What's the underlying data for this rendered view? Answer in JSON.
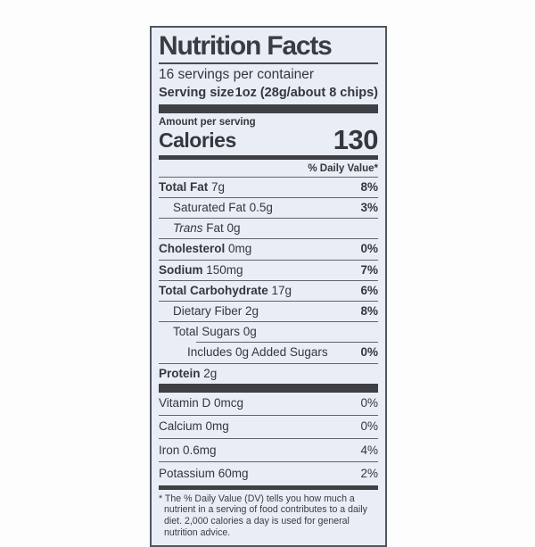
{
  "label": {
    "title": "Nutrition Facts",
    "servings_per_container": "16 servings per container",
    "serving_size_label": "Serving size",
    "serving_size_value": "1oz (28g/about 8 chips)",
    "amount_per_serving": "Amount per serving",
    "calories_label": "Calories",
    "calories_value": "130",
    "daily_value_header": "% Daily Value*",
    "nutrient_rows": [
      {
        "name": "Total Fat",
        "amount": "7g",
        "dv": "8%",
        "bold": true,
        "indent": 0
      },
      {
        "name": "Saturated Fat",
        "amount": "0.5g",
        "dv": "3%",
        "bold": false,
        "indent": 1
      },
      {
        "name": "Trans Fat",
        "amount": "0g",
        "dv": "",
        "bold": false,
        "indent": 1,
        "italic_first_word": true
      },
      {
        "name": "Cholesterol",
        "amount": "0mg",
        "dv": "0%",
        "bold": true,
        "indent": 0
      },
      {
        "name": "Sodium",
        "amount": "150mg",
        "dv": "7%",
        "bold": true,
        "indent": 0
      },
      {
        "name": "Total Carbohydrate",
        "amount": "17g",
        "dv": "6%",
        "bold": true,
        "indent": 0
      },
      {
        "name": "Dietary Fiber",
        "amount": "2g",
        "dv": "8%",
        "bold": false,
        "indent": 1
      },
      {
        "name": "Total Sugars",
        "amount": "0g",
        "dv": "",
        "bold": false,
        "indent": 1
      },
      {
        "name": "Includes 0g Added Sugars",
        "amount": "",
        "dv": "0%",
        "bold": false,
        "indent": 2,
        "inset_divider": true
      },
      {
        "name": "Protein",
        "amount": "2g",
        "dv": "",
        "bold": true,
        "indent": 0
      }
    ],
    "vitamin_rows": [
      {
        "name": "Vitamin D",
        "amount": "0mcg",
        "dv": "0%"
      },
      {
        "name": "Calcium",
        "amount": "0mg",
        "dv": "0%"
      },
      {
        "name": "Iron",
        "amount": "0.6mg",
        "dv": "4%"
      },
      {
        "name": "Potassium",
        "amount": "60mg",
        "dv": "2%"
      }
    ],
    "footnote": "* The % Daily Value (DV) tells you how much a nutrient in a serving of food contributes to a daily diet. 2,000 calories a day is used for general nutrition advice.",
    "colors": {
      "label_background": "#e9edf5",
      "text": "#35373d",
      "bars": "#3e4045"
    }
  }
}
